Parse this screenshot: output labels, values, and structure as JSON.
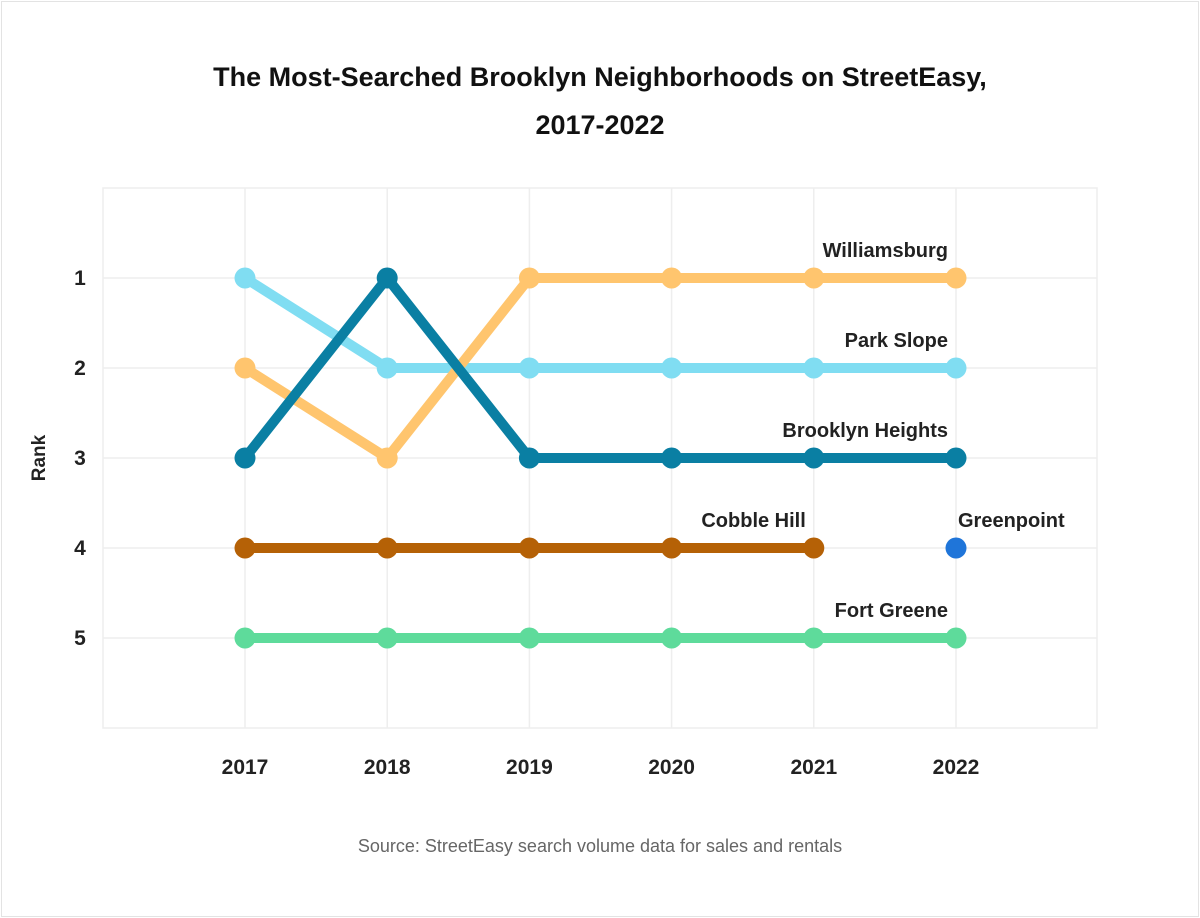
{
  "chart_data": {
    "type": "line",
    "title": "The Most-Searched Brooklyn Neighborhoods on StreetEasy,",
    "subtitle": "2017-2022",
    "xlabel": "",
    "ylabel": "Rank",
    "categories": [
      "2017",
      "2018",
      "2019",
      "2020",
      "2021",
      "2022"
    ],
    "ylim": [
      0,
      6
    ],
    "y_reversed": true,
    "y_ticks": [
      1,
      2,
      3,
      4,
      5
    ],
    "grid": true,
    "legend": "direct labels on series",
    "series": [
      {
        "name": "Williamsburg",
        "values": [
          2,
          3,
          1,
          1,
          1,
          1
        ],
        "color": "#ffc56e"
      },
      {
        "name": "Park Slope",
        "values": [
          1,
          2,
          2,
          2,
          2,
          2
        ],
        "color": "#80ddf2"
      },
      {
        "name": "Brooklyn Heights",
        "values": [
          3,
          1,
          3,
          3,
          3,
          3
        ],
        "color": "#0a7fa3"
      },
      {
        "name": "Cobble Hill",
        "values": [
          4,
          4,
          4,
          4,
          4,
          null
        ],
        "color": "#b56106"
      },
      {
        "name": "Greenpoint",
        "values": [
          null,
          null,
          null,
          null,
          null,
          4
        ],
        "color": "#1f75d9"
      },
      {
        "name": "Fort Greene",
        "values": [
          5,
          5,
          5,
          5,
          5,
          5
        ],
        "color": "#5edb9b"
      }
    ],
    "source": "Source: StreetEasy search volume data for sales and rentals"
  }
}
